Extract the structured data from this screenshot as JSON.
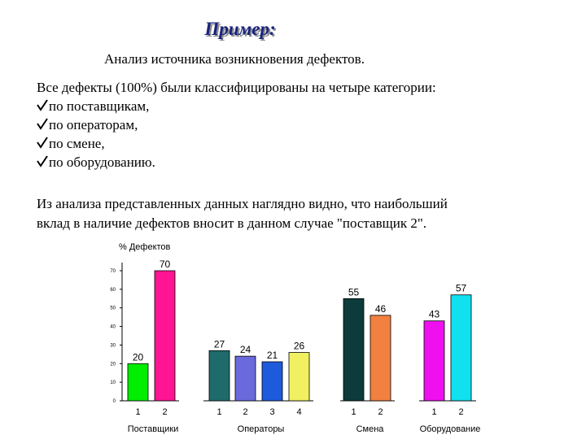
{
  "title": "Пример:",
  "subtitle": "Анализ источника возникновения дефектов.",
  "intro": "Все дефекты (100%) были классифицированы на четыре категории:",
  "items": [
    "по поставщикам,",
    "по операторам,",
    "по смене,",
    "по оборудованию."
  ],
  "conclusion": [
    "Из анализа представленных данных наглядно видно, что наибольший",
    "вклад в наличие дефектов вносит в данном случае \"поставщик 2\"."
  ],
  "chart_data": {
    "type": "bar",
    "y_label": "% Дефектов",
    "ylim": [
      0,
      70
    ],
    "yticks": [
      0,
      10,
      20,
      30,
      40,
      50,
      60,
      70
    ],
    "groups": [
      {
        "name": "Поставщики",
        "bars": [
          {
            "label": "1",
            "value": 20,
            "color": "#00ee00"
          },
          {
            "label": "2",
            "value": 70,
            "color": "#ff1493"
          }
        ]
      },
      {
        "name": "Операторы",
        "bars": [
          {
            "label": "1",
            "value": 27,
            "color": "#1f6b6b"
          },
          {
            "label": "2",
            "value": 24,
            "color": "#6a6adc"
          },
          {
            "label": "3",
            "value": 21,
            "color": "#1e5adc"
          },
          {
            "label": "4",
            "value": 26,
            "color": "#f0f060"
          }
        ]
      },
      {
        "name": "Смена",
        "bars": [
          {
            "label": "1",
            "value": 55,
            "color": "#0d3b3b"
          },
          {
            "label": "2",
            "value": 46,
            "color": "#f28040"
          }
        ]
      },
      {
        "name": "Оборудование",
        "bars": [
          {
            "label": "1",
            "value": 43,
            "color": "#ee10ee"
          },
          {
            "label": "2",
            "value": 57,
            "color": "#10e0f0"
          }
        ]
      }
    ]
  }
}
